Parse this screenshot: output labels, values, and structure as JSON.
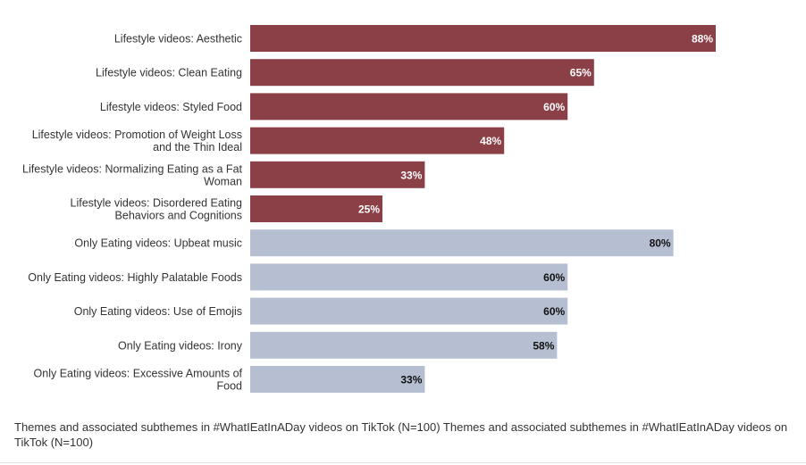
{
  "chart_data": {
    "type": "bar",
    "orientation": "horizontal",
    "categories": [
      "Lifestyle videos: Aesthetic",
      "Lifestyle videos: Clean Eating",
      "Lifestyle videos: Styled Food",
      "Lifestyle videos: Promotion of Weight Loss and the Thin Ideal",
      "Lifestyle videos: Normalizing Eating as a Fat Woman",
      "Lifestyle videos: Disordered Eating Behaviors and Cognitions",
      "Only Eating videos: Upbeat music",
      "Only Eating videos: Highly Palatable Foods",
      "Only Eating videos: Use of Emojis",
      "Only Eating videos: Irony",
      "Only Eating videos: Excessive Amounts of Food"
    ],
    "category_lines": [
      [
        "Lifestyle videos: Aesthetic"
      ],
      [
        "Lifestyle videos: Clean Eating"
      ],
      [
        "Lifestyle videos: Styled Food"
      ],
      [
        "Lifestyle videos: Promotion of Weight Loss",
        "and the Thin Ideal"
      ],
      [
        "Lifestyle videos: Normalizing Eating as a Fat",
        "Woman"
      ],
      [
        "Lifestyle videos: Disordered Eating",
        "Behaviors and Cognitions"
      ],
      [
        "Only Eating videos: Upbeat music"
      ],
      [
        "Only Eating videos: Highly Palatable Foods"
      ],
      [
        "Only Eating videos: Use of Emojis"
      ],
      [
        "Only Eating videos: Irony"
      ],
      [
        "Only Eating videos: Excessive Amounts of",
        "Food"
      ]
    ],
    "values": [
      88,
      65,
      60,
      48,
      33,
      25,
      80,
      60,
      60,
      58,
      33
    ],
    "value_labels": [
      "88%",
      "65%",
      "60%",
      "48%",
      "33%",
      "25%",
      "80%",
      "60%",
      "60%",
      "58%",
      "33%"
    ],
    "groups": [
      "lifestyle",
      "lifestyle",
      "lifestyle",
      "lifestyle",
      "lifestyle",
      "lifestyle",
      "only-eating",
      "only-eating",
      "only-eating",
      "only-eating",
      "only-eating"
    ],
    "colors": {
      "lifestyle": "#8b3f46",
      "only-eating": "#b6bfd1",
      "lifestyle_label": "#ffffff",
      "only-eating_label": "#111111"
    },
    "xlim": [
      0,
      100
    ],
    "unit": "%",
    "title": "",
    "xlabel": "",
    "ylabel": "",
    "grid": false,
    "legend": "none"
  },
  "caption": {
    "text": "Themes and associated subthemes in #WhatIEatInADay videos on TikTok (N=100) Themes and associated subthemes in #WhatIEatInADay videos on TikTok (N=100)"
  }
}
